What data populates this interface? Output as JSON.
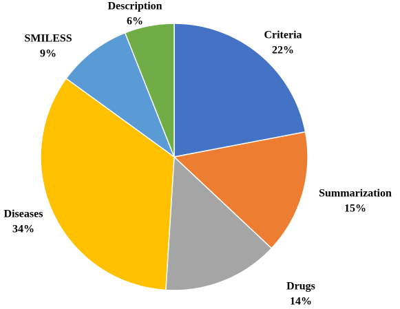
{
  "chart_data": {
    "type": "pie",
    "categories": [
      "Criteria",
      "Summarization",
      "Drugs",
      "Diseases",
      "SMILESS",
      "Description"
    ],
    "values": [
      22,
      15,
      14,
      34,
      9,
      6
    ],
    "value_labels": [
      "22%",
      "15%",
      "14%",
      "34%",
      "9%",
      "6%"
    ],
    "colors": [
      "#4472c4",
      "#ed7d31",
      "#a5a5a5",
      "#ffc000",
      "#5b9bd5",
      "#70ad47"
    ]
  }
}
